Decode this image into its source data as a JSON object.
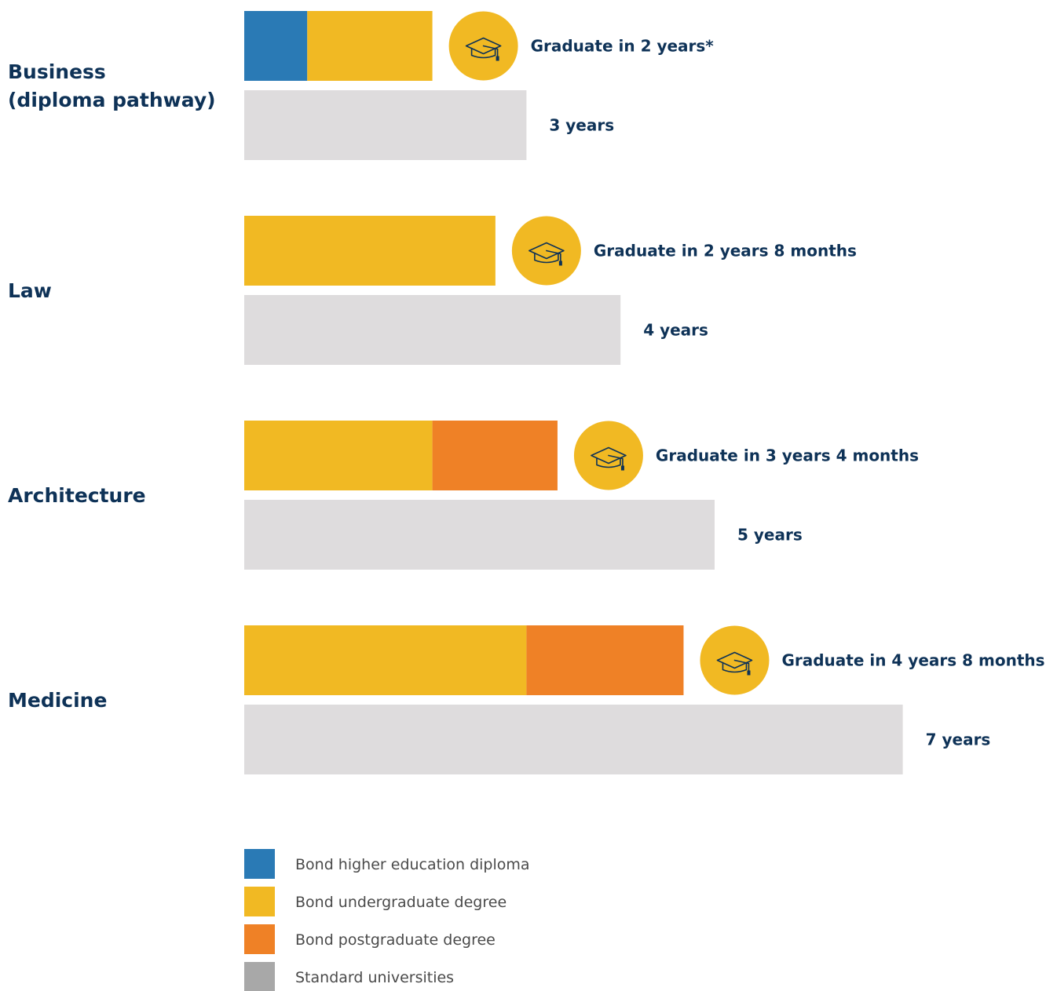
{
  "chart_data": {
    "type": "bar",
    "orientation": "horizontal",
    "stacked": true,
    "unit": "years",
    "categories": [
      {
        "label": "Business\n(diploma pathway)",
        "bond_label": "Graduate in 2 years*",
        "standard_label": "3 years"
      },
      {
        "label": "Law",
        "bond_label": "Graduate in 2 years 8 months",
        "standard_label": "4 years"
      },
      {
        "label": "Architecture",
        "bond_label": "Graduate in 3 years 4 months",
        "standard_label": "5 years"
      },
      {
        "label": "Medicine",
        "bond_label": "Graduate in 4 years 8 months",
        "standard_label": "7 years"
      }
    ],
    "series": [
      {
        "name": "Bond higher education diploma",
        "color": "#2a7ab5",
        "values": [
          0.67,
          0,
          0,
          0
        ]
      },
      {
        "name": "Bond undergraduate degree",
        "color": "#f1b923",
        "values": [
          1.33,
          2.67,
          2.0,
          3.0
        ]
      },
      {
        "name": "Bond postgraduate degree",
        "color": "#ef8126",
        "values": [
          0,
          0,
          1.33,
          1.67
        ]
      },
      {
        "name": "Standard universities",
        "color": "#dedcdd",
        "legend_color": "#a8a8a8",
        "values": [
          3,
          4,
          5,
          7
        ]
      }
    ],
    "icon": "graduation-cap-icon",
    "icon_color": "#f1b923",
    "legend_position": "bottom-left",
    "grid": false
  }
}
